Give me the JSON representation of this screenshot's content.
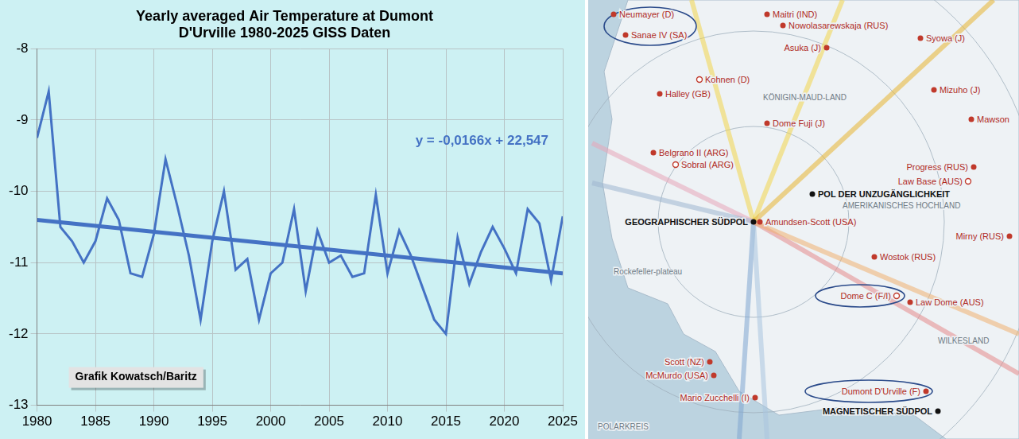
{
  "chart_data": {
    "type": "line",
    "title": [
      "Yearly averaged Air Temperature at Dumont",
      "D'Urville 1980-2025 GISS Daten"
    ],
    "x": [
      1980,
      1981,
      1982,
      1983,
      1984,
      1985,
      1986,
      1987,
      1988,
      1989,
      1990,
      1991,
      1992,
      1993,
      1994,
      1995,
      1996,
      1997,
      1998,
      1999,
      2000,
      2001,
      2002,
      2003,
      2004,
      2005,
      2006,
      2007,
      2008,
      2009,
      2010,
      2011,
      2012,
      2013,
      2014,
      2015,
      2016,
      2017,
      2018,
      2019,
      2020,
      2021,
      2022,
      2023,
      2024,
      2025
    ],
    "series": [
      {
        "color": "#4472c4",
        "values": [
          -9.25,
          -8.6,
          -10.5,
          -10.7,
          -11.0,
          -10.7,
          -10.1,
          -10.4,
          -11.15,
          -11.2,
          -10.6,
          -9.55,
          -10.2,
          -10.9,
          -11.8,
          -10.7,
          -10.0,
          -11.1,
          -10.95,
          -11.8,
          -11.15,
          -11.0,
          -10.25,
          -11.4,
          -10.55,
          -11.0,
          -10.9,
          -11.2,
          -11.15,
          -10.05,
          -11.15,
          -10.55,
          -10.9,
          -11.35,
          -11.8,
          -12.0,
          -10.65,
          -11.3,
          -10.85,
          -10.5,
          -10.8,
          -11.15,
          -10.25,
          -10.45,
          -11.25,
          -10.35
        ]
      },
      {
        "name": "y = -0,0166x + 22,547",
        "color": "#4472c4",
        "x": [
          1980,
          2025
        ],
        "values": [
          -10.4,
          -11.15
        ]
      }
    ],
    "annotations": [
      "Grafik Kowatsch/Baritz"
    ],
    "xlim": [
      1980,
      2025
    ],
    "xticks": [
      1980,
      1985,
      1990,
      1995,
      2000,
      2005,
      2010,
      2015,
      2020,
      2025
    ],
    "ylim": [
      -13,
      -8
    ],
    "yticks": [
      -13,
      -12,
      -11,
      -10,
      -9,
      -8
    ],
    "grid": true
  },
  "map": {
    "stations": [
      {
        "label": "Neumayer (D)",
        "marker": "filled"
      },
      {
        "label": "Sanae IV (SA)",
        "marker": "filled"
      },
      {
        "label": "Maitri (IND)",
        "marker": "filled"
      },
      {
        "label": "Nowolasarewskaja (RUS)",
        "marker": "filled"
      },
      {
        "label": "Asuka (J)",
        "marker": "filled"
      },
      {
        "label": "Syowa (J)",
        "marker": "filled"
      },
      {
        "label": "Mizuho (J)",
        "marker": "filled"
      },
      {
        "label": "Halley (GB)",
        "marker": "filled"
      },
      {
        "label": "Kohnen (D)",
        "marker": "open"
      },
      {
        "label": "Dome Fuji (J)",
        "marker": "filled"
      },
      {
        "label": "Belgrano II (ARG)",
        "marker": "filled"
      },
      {
        "label": "Sobral (ARG)",
        "marker": "open"
      },
      {
        "label": "Mawson",
        "marker": "filled"
      },
      {
        "label": "Progress (RUS)",
        "marker": "filled"
      },
      {
        "label": "Law Base (AUS)",
        "marker": "open"
      },
      {
        "label": "POL DER UNZUGÄNGLICHKEIT",
        "marker": "pole"
      },
      {
        "label": "GEOGRAPHISCHER SÜDPOL",
        "marker": "pole"
      },
      {
        "label": "Amundsen-Scott (USA)",
        "marker": "filled"
      },
      {
        "label": "Mirny (RUS)",
        "marker": "filled"
      },
      {
        "label": "Wostok (RUS)",
        "marker": "filled"
      },
      {
        "label": "Dome C (F/I)",
        "marker": "open"
      },
      {
        "label": "Law Dome (AUS)",
        "marker": "filled"
      },
      {
        "label": "Scott (NZ)",
        "marker": "filled"
      },
      {
        "label": "McMurdo (USA)",
        "marker": "filled"
      },
      {
        "label": "Mario Zucchelli (I)",
        "marker": "filled"
      },
      {
        "label": "Dumont D'Urville (F)",
        "marker": "filled"
      },
      {
        "label": "MAGNETISCHER SÜDPOL",
        "marker": "pole"
      }
    ],
    "regions": [
      "KÖNIGIN-MAUD-LAND",
      "AMERIKANISCHES HOCHLAND",
      "WILKESLAND",
      "Rockefeller-plateau",
      "POLARKREIS"
    ]
  }
}
